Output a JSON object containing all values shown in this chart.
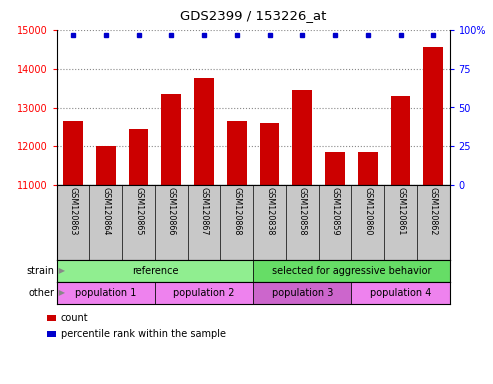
{
  "title": "GDS2399 / 153226_at",
  "samples": [
    "GSM120863",
    "GSM120864",
    "GSM120865",
    "GSM120866",
    "GSM120867",
    "GSM120868",
    "GSM120838",
    "GSM120858",
    "GSM120859",
    "GSM120860",
    "GSM120861",
    "GSM120862"
  ],
  "counts": [
    12650,
    12000,
    12450,
    13350,
    13750,
    12650,
    12600,
    13450,
    11850,
    11850,
    13300,
    14550
  ],
  "percentile_ranks": [
    97,
    97,
    97,
    97,
    97,
    97,
    97,
    97,
    97,
    97,
    97,
    97
  ],
  "ylim_left": [
    11000,
    15000
  ],
  "ylim_right": [
    0,
    100
  ],
  "yticks_left": [
    11000,
    12000,
    13000,
    14000,
    15000
  ],
  "yticks_right": [
    0,
    25,
    50,
    75,
    100
  ],
  "bar_color": "#cc0000",
  "dot_color": "#0000cc",
  "bar_width": 0.6,
  "strain_groups": [
    {
      "label": "reference",
      "start": 0,
      "end": 6,
      "color": "#90EE90"
    },
    {
      "label": "selected for aggressive behavior",
      "start": 6,
      "end": 12,
      "color": "#66DD66"
    }
  ],
  "other_groups": [
    {
      "label": "population 1",
      "start": 0,
      "end": 3,
      "color": "#EE82EE"
    },
    {
      "label": "population 2",
      "start": 3,
      "end": 6,
      "color": "#EE82EE"
    },
    {
      "label": "population 3",
      "start": 6,
      "end": 9,
      "color": "#CC66CC"
    },
    {
      "label": "population 4",
      "start": 9,
      "end": 12,
      "color": "#EE82EE"
    }
  ],
  "strain_label": "strain",
  "other_label": "other",
  "legend_count_label": "count",
  "legend_pct_label": "percentile rank within the sample",
  "grid_color": "#888888",
  "xtick_bg_color": "#c8c8c8",
  "fig_width": 4.93,
  "fig_height": 3.84,
  "fig_dpi": 100
}
